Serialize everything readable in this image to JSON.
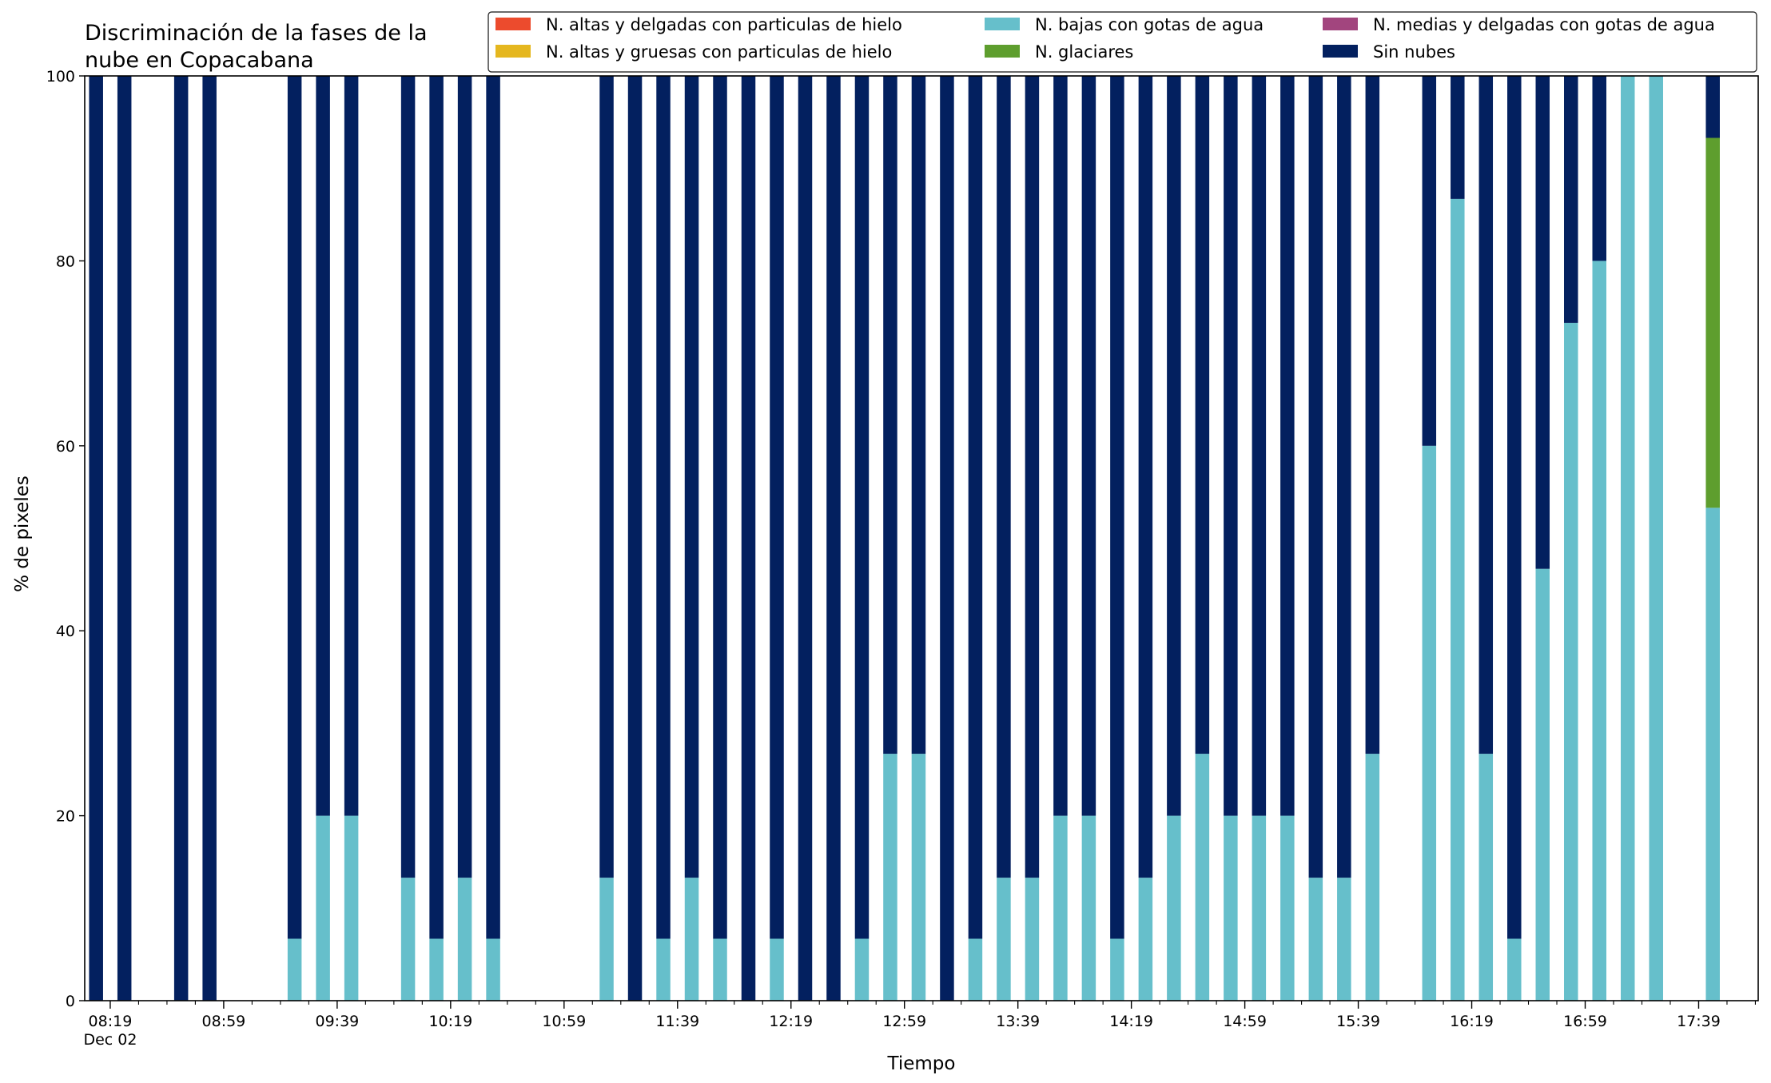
{
  "chart_data": {
    "type": "bar",
    "stacked": true,
    "title_lines": [
      "Discriminación de la fases de la",
      "nube en Copacabana"
    ],
    "xlabel": "Tiempo",
    "ylabel": "% de pixeles",
    "ylim": [
      0,
      100
    ],
    "yticks": [
      0,
      20,
      40,
      60,
      80,
      100
    ],
    "grid": false,
    "legend_placement": "top-right",
    "xrange_minutes": [
      "08:10",
      "18:00"
    ],
    "xticks": [
      {
        "time": "08:19",
        "label": "08:19",
        "sublabel": "Dec 02"
      },
      {
        "time": "08:59",
        "label": "08:59"
      },
      {
        "time": "09:39",
        "label": "09:39"
      },
      {
        "time": "10:19",
        "label": "10:19"
      },
      {
        "time": "10:59",
        "label": "10:59"
      },
      {
        "time": "11:39",
        "label": "11:39"
      },
      {
        "time": "12:19",
        "label": "12:19"
      },
      {
        "time": "12:59",
        "label": "12:59"
      },
      {
        "time": "13:39",
        "label": "13:39"
      },
      {
        "time": "14:19",
        "label": "14:19"
      },
      {
        "time": "14:59",
        "label": "14:59"
      },
      {
        "time": "15:39",
        "label": "15:39"
      },
      {
        "time": "16:19",
        "label": "16:19"
      },
      {
        "time": "16:59",
        "label": "16:59"
      },
      {
        "time": "17:39",
        "label": "17:39"
      }
    ],
    "series": [
      {
        "key": "alt_thin_ice",
        "name": "N. altas y delgadas con particulas de hielo",
        "color": "#ec4b2d"
      },
      {
        "key": "alt_thick_ice",
        "name": "N. altas y gruesas con particulas de hielo",
        "color": "#e5b71f"
      },
      {
        "key": "low_water",
        "name": "N. bajas con gotas de agua",
        "color": "#66bfcb"
      },
      {
        "key": "glacier",
        "name": "N. glaciares",
        "color": "#5e9e2e"
      },
      {
        "key": "mid_water",
        "name": "N. medias y delgadas con gotas de agua",
        "color": "#a2457e"
      },
      {
        "key": "clear",
        "name": "Sin nubes",
        "color": "#03205f"
      }
    ],
    "x": [
      "08:14",
      "08:24",
      "08:44",
      "08:54",
      "09:24",
      "09:34",
      "09:44",
      "10:04",
      "10:14",
      "10:24",
      "10:34",
      "11:14",
      "11:24",
      "11:34",
      "11:44",
      "11:54",
      "12:04",
      "12:14",
      "12:24",
      "12:34",
      "12:44",
      "12:54",
      "13:04",
      "13:14",
      "13:24",
      "13:34",
      "13:44",
      "13:54",
      "14:04",
      "14:14",
      "14:24",
      "14:34",
      "14:44",
      "14:54",
      "15:04",
      "15:14",
      "15:24",
      "15:34",
      "15:44",
      "16:04",
      "16:14",
      "16:24",
      "16:34",
      "16:44",
      "16:54",
      "17:04",
      "17:14",
      "17:24",
      "17:44"
    ],
    "values": {
      "low_water": [
        0,
        0,
        0,
        0,
        6.7,
        20,
        20,
        13.3,
        6.7,
        13.3,
        6.7,
        13.3,
        0,
        6.7,
        13.3,
        6.7,
        0,
        6.7,
        0,
        0,
        6.7,
        26.7,
        26.7,
        0,
        6.7,
        13.3,
        13.3,
        20,
        20,
        6.7,
        13.3,
        20,
        26.7,
        20,
        20,
        20,
        13.3,
        13.3,
        26.7,
        60,
        86.7,
        26.7,
        6.7,
        46.7,
        73.3,
        80,
        100,
        100,
        53.3
      ],
      "glacier": [
        0,
        0,
        0,
        0,
        0,
        0,
        0,
        0,
        0,
        0,
        0,
        0,
        0,
        0,
        0,
        0,
        0,
        0,
        0,
        0,
        0,
        0,
        0,
        0,
        0,
        0,
        0,
        0,
        0,
        0,
        0,
        0,
        0,
        0,
        0,
        0,
        0,
        0,
        0,
        0,
        0,
        0,
        0,
        0,
        0,
        0,
        0,
        0,
        40
      ],
      "clear": [
        100,
        100,
        100,
        100,
        93.3,
        80,
        80,
        86.7,
        93.3,
        86.7,
        93.3,
        86.7,
        100,
        93.3,
        86.7,
        93.3,
        100,
        93.3,
        100,
        100,
        93.3,
        73.3,
        73.3,
        100,
        93.3,
        86.7,
        86.7,
        80,
        80,
        93.3,
        86.7,
        80,
        73.3,
        80,
        80,
        80,
        86.7,
        86.7,
        73.3,
        40,
        13.3,
        73.3,
        93.3,
        53.3,
        26.7,
        20,
        0,
        0,
        6.7
      ]
    }
  }
}
